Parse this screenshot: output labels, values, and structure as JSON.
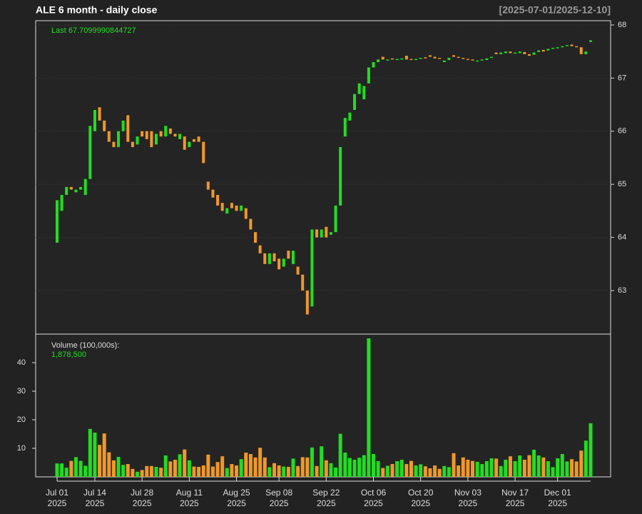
{
  "chart_data": {
    "type": "candlestick",
    "title": "ALE  6 month - daily close",
    "date_range": "[2025-07-01/2025-12-10]",
    "last_label": "Last 67.7099990844727",
    "categories": [
      "Jul 01",
      null,
      null,
      null,
      null,
      null,
      null,
      null,
      "Jul 14",
      null,
      null,
      null,
      null,
      null,
      null,
      null,
      null,
      null,
      "Jul 28",
      null,
      null,
      null,
      null,
      null,
      null,
      null,
      null,
      null,
      "Aug 11",
      null,
      null,
      null,
      null,
      null,
      null,
      null,
      null,
      null,
      "Aug 25",
      null,
      null,
      null,
      null,
      null,
      null,
      null,
      null,
      "Sep 08",
      null,
      null,
      null,
      null,
      null,
      null,
      null,
      null,
      null,
      "Sep 22",
      null,
      null,
      null,
      null,
      null,
      null,
      null,
      null,
      null,
      "Oct 06",
      null,
      null,
      null,
      null,
      null,
      null,
      null,
      null,
      null,
      "Oct 20",
      null,
      null,
      null,
      null,
      null,
      null,
      null,
      null,
      null,
      "Nov 03",
      null,
      null,
      null,
      null,
      null,
      null,
      null,
      null,
      null,
      "Nov 17",
      null,
      null,
      null,
      null,
      null,
      null,
      null,
      null,
      "Dec 01",
      null,
      null,
      null,
      null,
      null,
      null,
      null
    ],
    "x_sublabel": "2025",
    "open": [
      63.9,
      64.5,
      64.8,
      64.95,
      64.85,
      64.9,
      64.8,
      65.1,
      66.0,
      66.45,
      66.2,
      66.0,
      65.8,
      65.7,
      66.0,
      66.3,
      65.8,
      65.75,
      66.0,
      66.0,
      66.0,
      65.75,
      66.0,
      65.9,
      66.05,
      65.95,
      65.85,
      65.9,
      65.7,
      65.85,
      65.9,
      65.8,
      65.05,
      64.9,
      64.8,
      64.65,
      64.45,
      64.65,
      64.6,
      64.5,
      64.55,
      64.35,
      64.1,
      63.85,
      63.7,
      63.5,
      63.7,
      63.6,
      63.45,
      63.75,
      63.5,
      63.45,
      63.3,
      63.0,
      62.7,
      64.15,
      64.0,
      64.2,
      64.05,
      64.1,
      64.6,
      65.9,
      66.2,
      66.4,
      66.7,
      66.6,
      66.9,
      67.2,
      67.3,
      67.4,
      67.33,
      67.37,
      67.34,
      67.35,
      67.42,
      67.36,
      67.34,
      67.36,
      67.39,
      67.43,
      67.4,
      67.38,
      67.3,
      67.34,
      67.43,
      67.4,
      67.38,
      67.36,
      67.35,
      67.31,
      67.33,
      67.34,
      67.38,
      67.48,
      67.45,
      67.47,
      67.5,
      67.46,
      67.47,
      67.49,
      67.45,
      67.44,
      67.49,
      67.53,
      67.52,
      67.55,
      67.56,
      67.58,
      67.6,
      67.63,
      67.6,
      67.58,
      67.45,
      67.68
    ],
    "close": [
      64.7,
      64.8,
      64.95,
      64.9,
      64.9,
      64.95,
      65.1,
      66.1,
      66.4,
      66.2,
      66.0,
      65.8,
      65.7,
      66.0,
      66.2,
      65.8,
      65.7,
      65.9,
      65.9,
      65.85,
      65.7,
      65.95,
      65.9,
      66.1,
      65.95,
      65.9,
      65.95,
      65.65,
      65.8,
      65.8,
      65.8,
      65.4,
      64.9,
      64.75,
      64.6,
      64.5,
      64.55,
      64.55,
      64.5,
      64.6,
      64.35,
      64.15,
      63.9,
      63.7,
      63.5,
      63.7,
      63.55,
      63.4,
      63.6,
      63.6,
      63.75,
      63.3,
      63.0,
      62.55,
      64.15,
      64.0,
      64.15,
      64.0,
      64.1,
      64.6,
      65.7,
      66.25,
      66.35,
      66.7,
      66.9,
      66.85,
      67.2,
      67.3,
      67.35,
      67.35,
      67.35,
      67.35,
      67.36,
      67.37,
      67.35,
      67.35,
      67.36,
      67.38,
      67.37,
      67.4,
      67.37,
      67.36,
      67.33,
      67.38,
      67.4,
      67.38,
      67.36,
      67.35,
      67.33,
      67.33,
      67.35,
      67.37,
      67.4,
      67.45,
      67.48,
      67.5,
      67.47,
      67.48,
      67.5,
      67.45,
      67.42,
      67.48,
      67.52,
      67.5,
      67.55,
      67.57,
      67.58,
      67.6,
      67.62,
      67.6,
      67.58,
      67.45,
      67.5,
      67.71
    ],
    "ylim": [
      62.18,
      68.08
    ],
    "yticks": [
      63,
      64,
      65,
      66,
      67,
      68
    ],
    "grid": true,
    "up_color": "#22dd22",
    "down_color": "#f0982a",
    "volume": {
      "label": "Volume (100,000s):",
      "last_value_label": "1,878,500",
      "values": [
        4.7,
        4.7,
        3.2,
        5.6,
        6.9,
        5.6,
        3.9,
        16.8,
        15.5,
        11.2,
        15.2,
        8.6,
        5.8,
        7.0,
        4.2,
        4.5,
        2.8,
        1.8,
        2.4,
        3.8,
        3.8,
        3.5,
        3.2,
        7.5,
        5.4,
        6.0,
        7.9,
        9.6,
        5.8,
        3.6,
        3.5,
        4.0,
        7.8,
        3.6,
        5.2,
        7.2,
        3.1,
        4.5,
        4.0,
        6.2,
        8.5,
        8.0,
        6.8,
        10.2,
        6.8,
        3.4,
        4.8,
        4.0,
        3.6,
        3.5,
        6.4,
        3.8,
        6.9,
        6.8,
        10.3,
        3.8,
        10.7,
        5.8,
        4.8,
        3.3,
        15.1,
        8.5,
        6.6,
        6.0,
        6.7,
        7.6,
        48.5,
        8.0,
        5.5,
        3.1,
        3.9,
        4.5,
        5.5,
        6.0,
        4.5,
        5.6,
        4.0,
        4.4,
        3.7,
        3.0,
        4.0,
        2.8,
        3.8,
        3.4,
        8.3,
        4.0,
        6.8,
        6.0,
        5.6,
        5.3,
        4.5,
        5.5,
        6.5,
        6.4,
        3.8,
        6.0,
        7.2,
        5.5,
        7.5,
        6.0,
        7.6,
        9.5,
        7.5,
        6.8,
        5.5,
        3.4,
        6.5,
        8.0,
        5.4,
        6.2,
        5.4,
        9.2,
        12.7,
        18.785
      ],
      "ylim": [
        0,
        50
      ],
      "yticks": [
        10,
        20,
        30,
        40
      ]
    }
  }
}
